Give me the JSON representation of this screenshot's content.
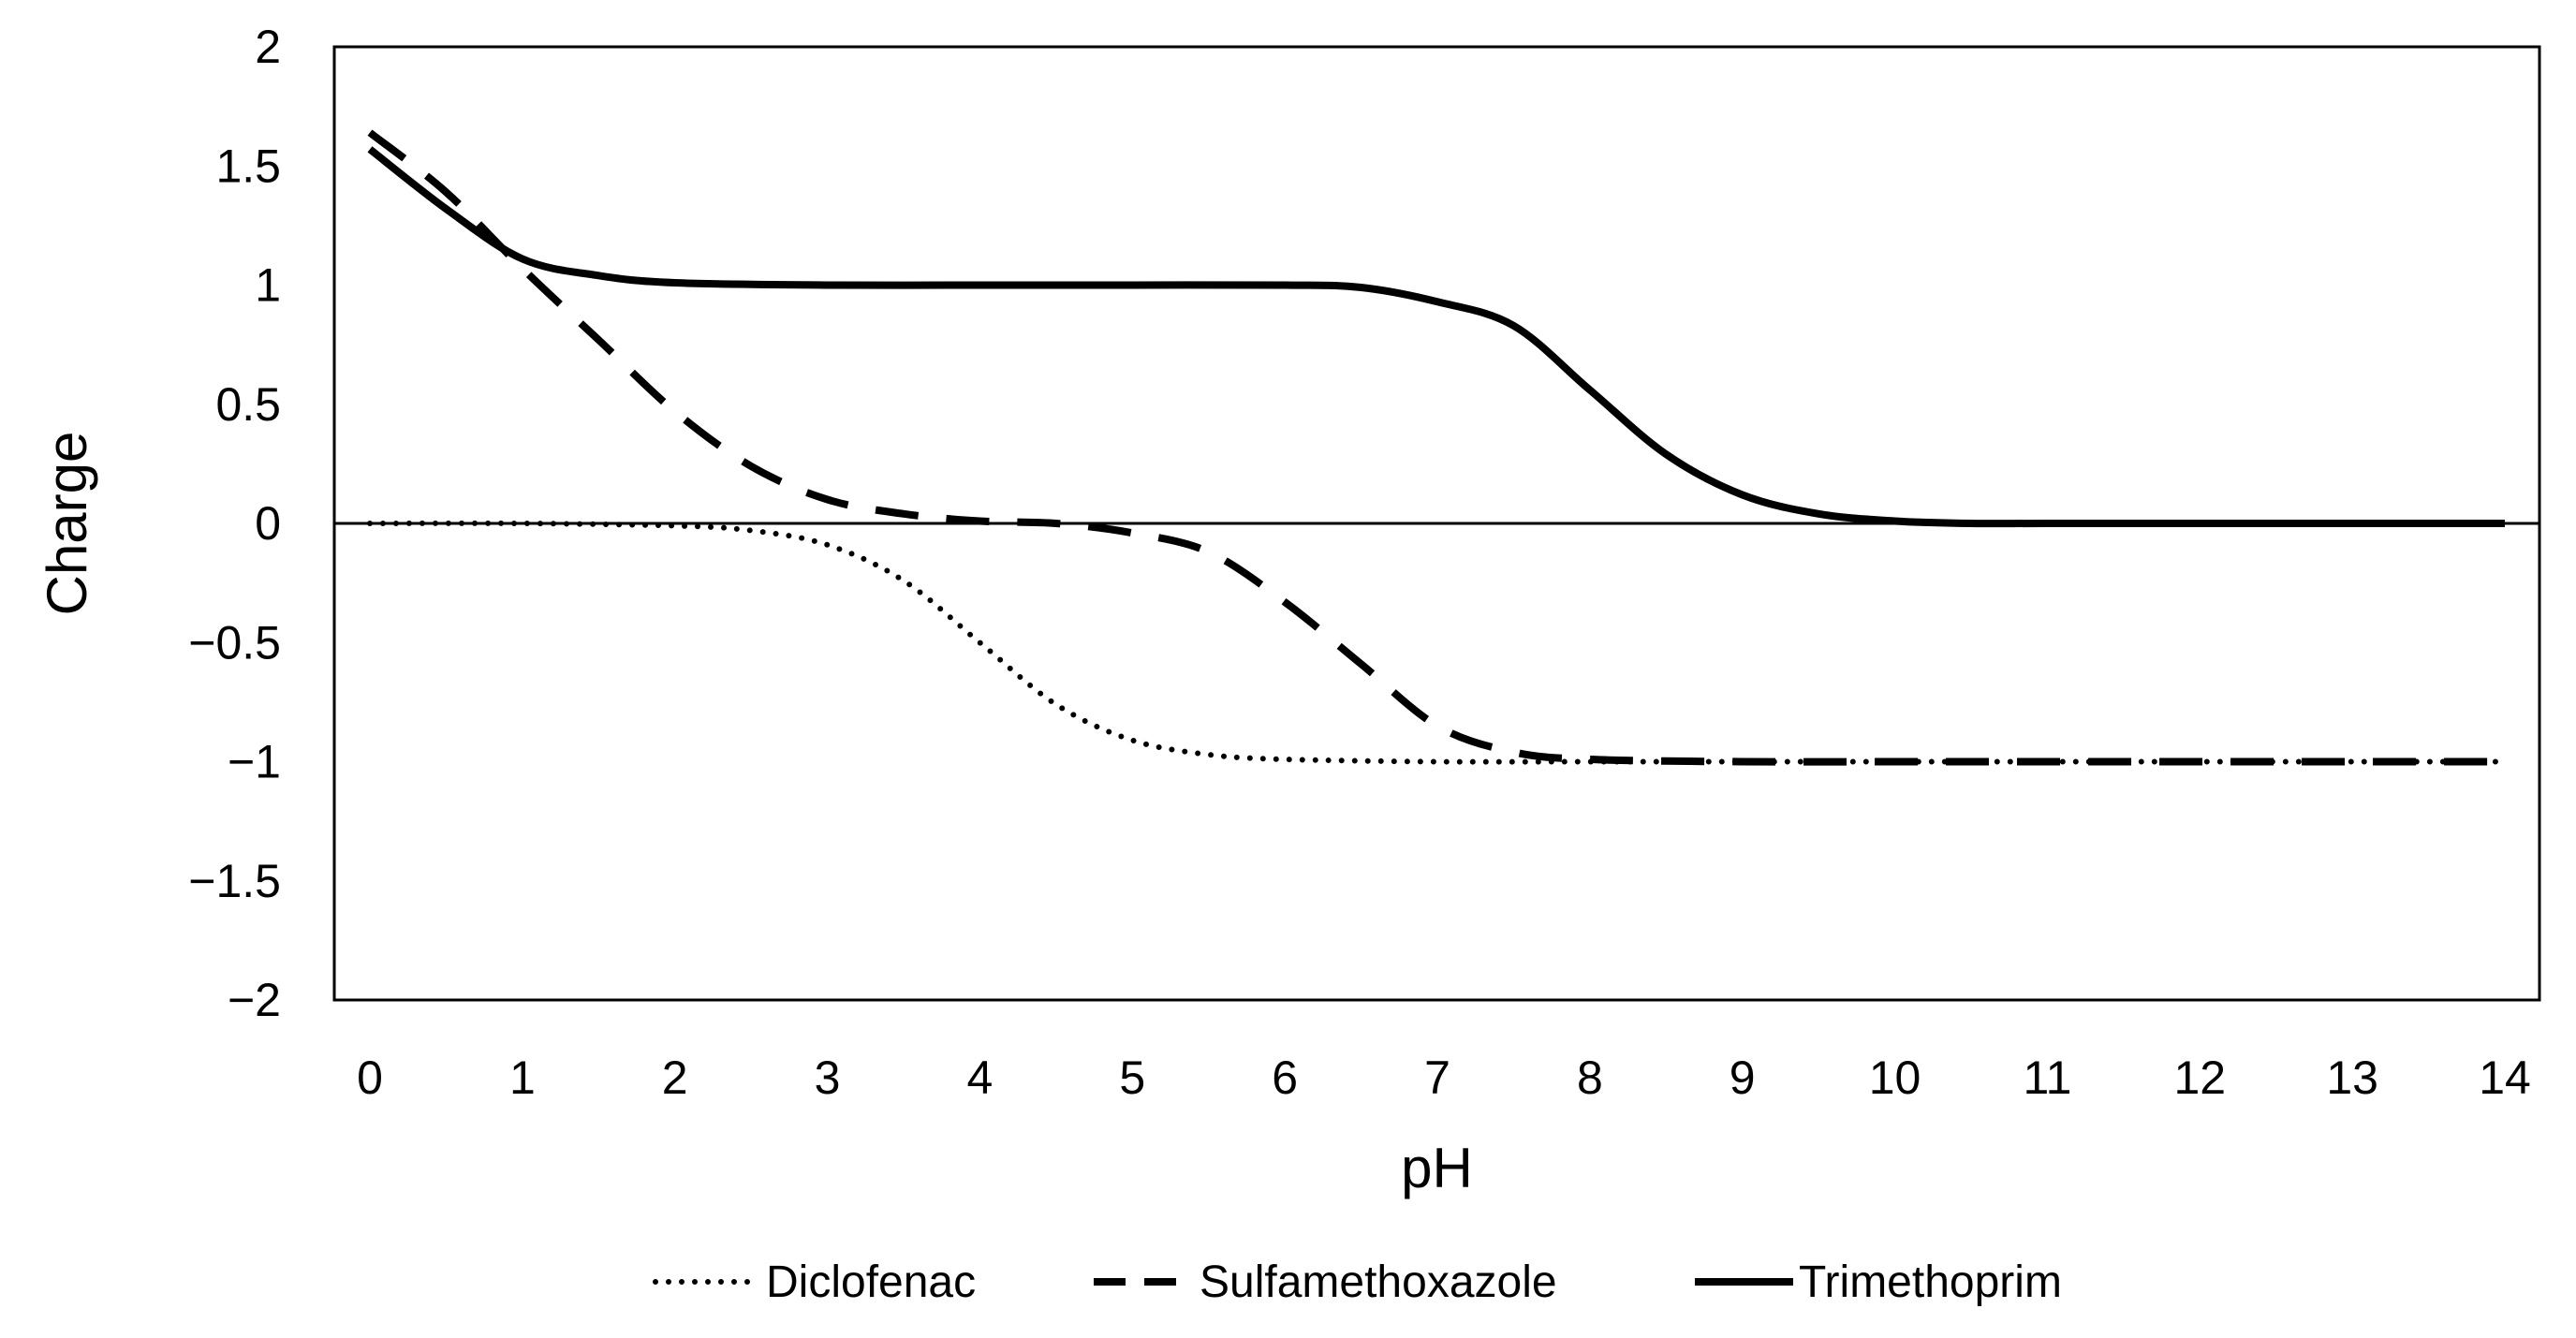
{
  "chart_data": {
    "type": "line",
    "title": "",
    "xlabel": "pH",
    "ylabel": "Charge",
    "xlim": [
      0,
      14
    ],
    "ylim": [
      -2,
      2
    ],
    "x_ticks": [
      0,
      1,
      2,
      3,
      4,
      5,
      6,
      7,
      8,
      9,
      10,
      11,
      12,
      13,
      14
    ],
    "x_tick_labels": [
      "0",
      "1",
      "2",
      "3",
      "4",
      "5",
      "6",
      "7",
      "8",
      "9",
      "10",
      "11",
      "12",
      "13",
      "14"
    ],
    "y_ticks": [
      2,
      1.5,
      1,
      0.5,
      0,
      -0.5,
      -1,
      -1.5,
      -2
    ],
    "y_tick_labels": [
      "2",
      "1.5",
      "1",
      "0.5",
      "0",
      "−0.5",
      "−1",
      "−1.5",
      "−2"
    ],
    "grid": false,
    "legend_position": "bottom",
    "series": [
      {
        "name": "Diclofenac",
        "style": "dotted",
        "x": [
          0,
          1,
          2,
          2.5,
          3,
          3.5,
          4,
          4.5,
          5,
          5.5,
          6,
          7,
          8,
          9,
          10,
          11,
          12,
          13,
          14
        ],
        "values": [
          0,
          0,
          -0.01,
          -0.03,
          -0.09,
          -0.24,
          -0.5,
          -0.76,
          -0.91,
          -0.97,
          -0.99,
          -1,
          -1,
          -1,
          -1,
          -1,
          -1,
          -1,
          -1
        ]
      },
      {
        "name": "Sulfamethoxazole",
        "style": "dashed",
        "x": [
          0,
          0.5,
          1,
          1.5,
          2,
          2.5,
          3,
          3.5,
          4,
          4.5,
          5,
          5.5,
          6,
          6.5,
          7,
          7.5,
          8,
          9,
          10,
          11,
          12,
          13,
          14
        ],
        "values": [
          1.64,
          1.39,
          1.07,
          0.77,
          0.47,
          0.24,
          0.1,
          0.04,
          0.01,
          0,
          -0.04,
          -0.12,
          -0.33,
          -0.59,
          -0.85,
          -0.96,
          -0.99,
          -1,
          -1,
          -1,
          -1,
          -1,
          -1
        ]
      },
      {
        "name": "Trimethoprim",
        "style": "solid",
        "x": [
          0,
          0.5,
          1,
          1.5,
          2,
          3,
          4,
          5,
          6,
          6.5,
          7,
          7.5,
          8,
          8.5,
          9,
          9.5,
          10,
          10.5,
          11,
          12,
          13,
          14
        ],
        "values": [
          1.57,
          1.32,
          1.11,
          1.04,
          1.01,
          1,
          1,
          1,
          1,
          0.99,
          0.93,
          0.83,
          0.56,
          0.29,
          0.12,
          0.04,
          0.01,
          0,
          0,
          0,
          0,
          0
        ]
      }
    ]
  }
}
